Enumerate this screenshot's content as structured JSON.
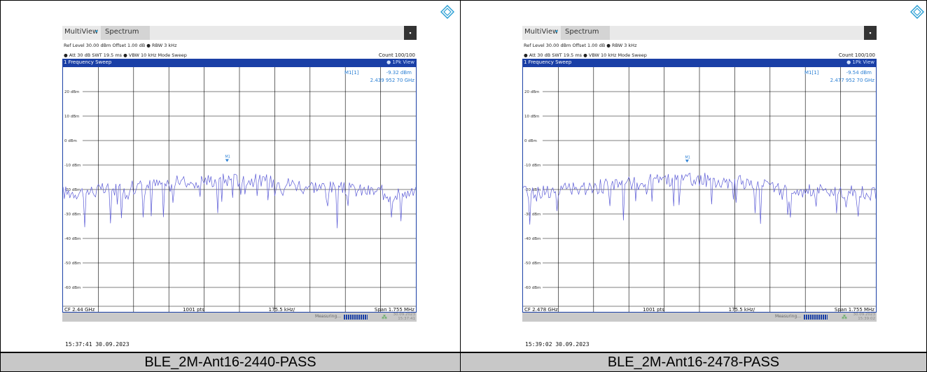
{
  "panels": [
    {
      "tab_multiview": "MultiView",
      "tab_spectrum": "Spectrum",
      "ref_level_line": "Ref Level 30.00 dBm   Offset 1.00 dB ● RBW 3 kHz",
      "att_line": "● Att          30 dB  SWT  19.5 ms ● VBW 10 kHz  Mode Sweep",
      "count": "Count 100/100",
      "sweep_title": "1 Frequency Sweep",
      "view_mode": "● 1Pk View",
      "marker_label": "M1[1]",
      "marker_level": "-9.32 dBm",
      "marker_freq": "2.439 952 70 GHz",
      "marker_tag": "M1",
      "y_ticks": [
        "20 dBm",
        "10 dBm",
        "0 dBm",
        "-10 dBm",
        "-20 dBm",
        "-30 dBm",
        "-40 dBm",
        "-50 dBm",
        "-60 dBm"
      ],
      "cf": "CF 2.44 GHz",
      "pts": "1001 pts",
      "div": "175.5 kHz/",
      "span": "Span 1.755 MHz",
      "status_measuring": "Measuring...",
      "status_date": "30.09.2023",
      "status_time": "15:37:41",
      "timestamp": "15:37:41  30.09.2023",
      "caption": "BLE_2M-Ant16-2440-PASS",
      "marker_dbm": -9.32
    },
    {
      "tab_multiview": "MultiView",
      "tab_spectrum": "Spectrum",
      "ref_level_line": "Ref Level 30.00 dBm   Offset 1.00 dB ● RBW 3 kHz",
      "att_line": "● Att          30 dB  SWT  19.5 ms ● VBW 10 kHz  Mode Sweep",
      "count": "Count 100/100",
      "sweep_title": "1 Frequency Sweep",
      "view_mode": "● 1Pk View",
      "marker_label": "M1[1]",
      "marker_level": "-9.54 dBm",
      "marker_freq": "2.477 952 70 GHz",
      "marker_tag": "M1",
      "y_ticks": [
        "20 dBm",
        "10 dBm",
        "0 dBm",
        "-10 dBm",
        "-20 dBm",
        "-30 dBm",
        "-40 dBm",
        "-50 dBm",
        "-60 dBm"
      ],
      "cf": "CF 2.478 GHz",
      "pts": "1001 pts",
      "div": "175.5 kHz/",
      "span": "Span 1.755 MHz",
      "status_measuring": "Measuring...",
      "status_date": "30.09.2023",
      "status_time": "15:39:02",
      "timestamp": "15:39:02  30.09.2023",
      "caption": "BLE_2M-Ant16-2478-PASS",
      "marker_dbm": -9.54
    }
  ],
  "colors": {
    "trace": "#5b5bd6",
    "accent": "#1a3fa6",
    "marker_text": "#2a7fd4"
  }
}
